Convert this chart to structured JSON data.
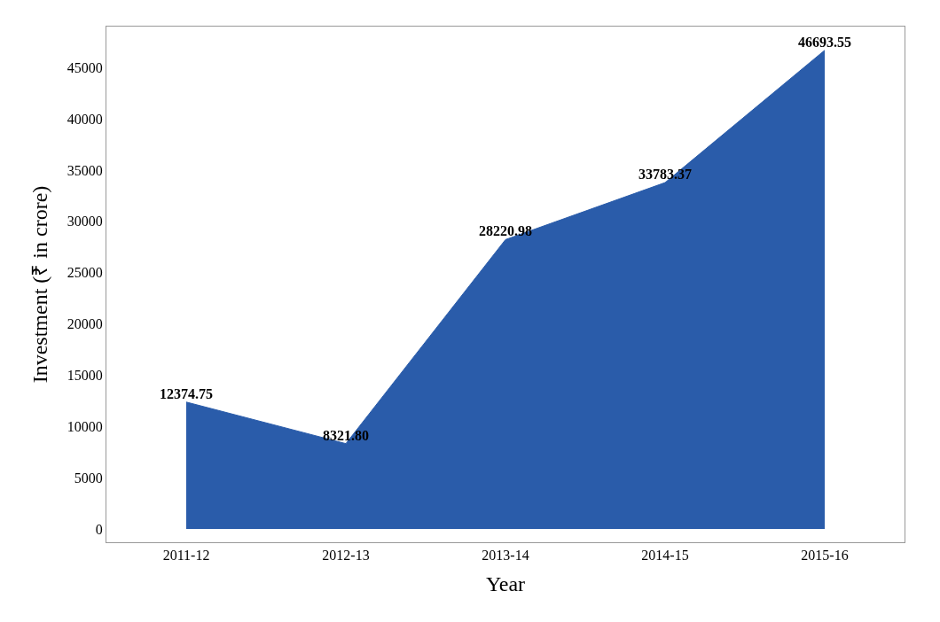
{
  "chart_data": {
    "type": "area",
    "xlabel": "Year",
    "ylabel": "Investment (₹ in crore)",
    "categories": [
      "2011-12",
      "2012-13",
      "2013-14",
      "2014-15",
      "2015-16"
    ],
    "values": [
      12374.75,
      8321.8,
      28220.98,
      33783.37,
      46693.55
    ],
    "value_labels": [
      "12374.75",
      "8321.80",
      "28220.98",
      "33783.37",
      "46693.55"
    ],
    "color": "#2a5caa",
    "ylim": [
      -1300,
      49000
    ],
    "yticks": [
      0,
      5000,
      10000,
      15000,
      20000,
      25000,
      30000,
      35000,
      40000,
      45000
    ],
    "legend": false
  }
}
